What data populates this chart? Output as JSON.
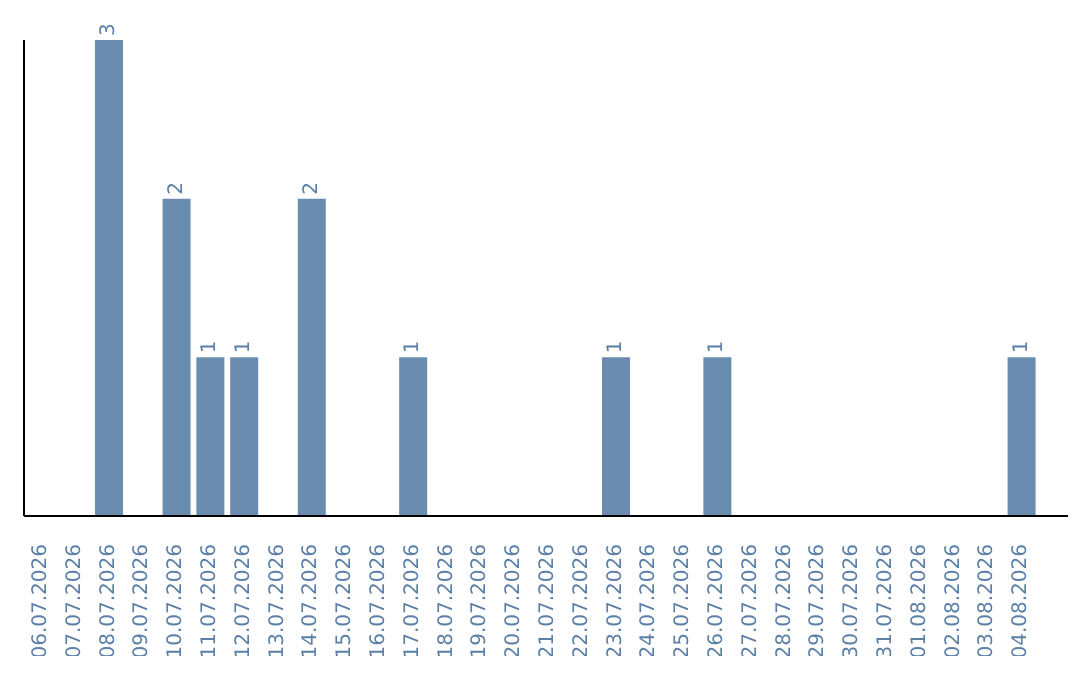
{
  "chart_data": {
    "type": "bar",
    "categories": [
      "06.07.2026",
      "07.07.2026",
      "08.07.2026",
      "09.07.2026",
      "10.07.2026",
      "11.07.2026",
      "12.07.2026",
      "13.07.2026",
      "14.07.2026",
      "15.07.2026",
      "16.07.2026",
      "17.07.2026",
      "18.07.2026",
      "19.07.2026",
      "20.07.2026",
      "21.07.2026",
      "22.07.2026",
      "23.07.2026",
      "24.07.2026",
      "25.07.2026",
      "26.07.2026",
      "27.07.2026",
      "28.07.2026",
      "29.07.2026",
      "30.07.2026",
      "31.07.2026",
      "01.08.2026",
      "02.08.2026",
      "03.08.2026",
      "04.08.2026"
    ],
    "values": [
      0,
      0,
      3,
      0,
      2,
      1,
      1,
      0,
      2,
      0,
      0,
      1,
      0,
      0,
      0,
      0,
      0,
      1,
      0,
      0,
      1,
      0,
      0,
      0,
      0,
      0,
      0,
      0,
      0,
      1
    ],
    "value_labels": [
      null,
      null,
      "3",
      null,
      "2",
      "1",
      "1",
      null,
      "2",
      null,
      null,
      "1",
      null,
      null,
      null,
      null,
      null,
      "1",
      null,
      null,
      "1",
      null,
      null,
      null,
      null,
      null,
      null,
      null,
      null,
      "1"
    ],
    "color": "#6a8caf",
    "relative": false,
    "grid": false,
    "legend": false
  }
}
